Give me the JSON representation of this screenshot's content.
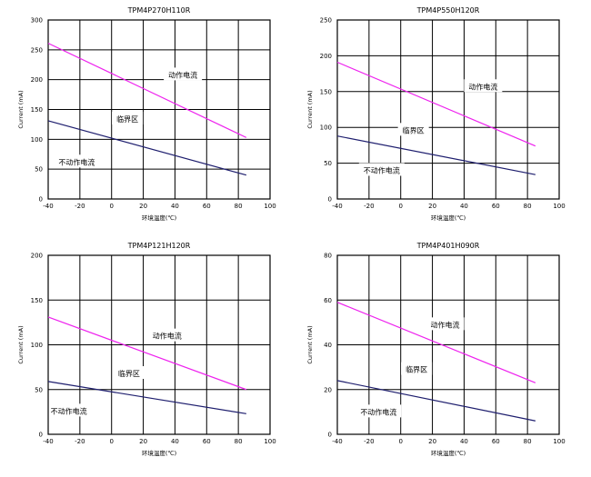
{
  "chart_data": [
    {
      "type": "line",
      "title": "TPM4P270H110R",
      "xlabel": "环境温度(℃)",
      "ylabel": "Current (mA)",
      "xlim": [
        -40,
        100
      ],
      "ylim": [
        0,
        300
      ],
      "xticks": [
        -40,
        -20,
        0,
        20,
        40,
        60,
        80,
        100
      ],
      "yticks": [
        0,
        50,
        100,
        150,
        200,
        250,
        300
      ],
      "x_tick_labels": [
        "-40",
        "-20",
        "0",
        "20",
        "40",
        "60",
        "80",
        "100"
      ],
      "y_tick_labels": [
        "0",
        "50",
        "100",
        "150",
        "200",
        "250",
        "300"
      ],
      "grid": true,
      "regions": [
        {
          "label": "动作电流",
          "x": 45,
          "y": 208
        },
        {
          "label": "临界区",
          "x": 10,
          "y": 134
        },
        {
          "label": "不动作电流",
          "x": -22,
          "y": 62
        }
      ],
      "series": [
        {
          "color": "#ee22ee",
          "x": [
            -40,
            85
          ],
          "y": [
            261,
            103
          ]
        },
        {
          "color": "#1e1e6e",
          "x": [
            -40,
            85
          ],
          "y": [
            131,
            40
          ]
        }
      ]
    },
    {
      "type": "line",
      "title": "TPM4P550H120R",
      "xlabel": "环境温度(℃)",
      "ylabel": "Current (mA)",
      "xlim": [
        -40,
        100
      ],
      "ylim": [
        0,
        250
      ],
      "xticks": [
        -40,
        -20,
        0,
        20,
        40,
        60,
        80,
        100
      ],
      "yticks": [
        0,
        50,
        100,
        150,
        200,
        250
      ],
      "x_tick_labels": [
        "-40",
        "-20",
        "0",
        "20",
        "40",
        "60",
        "80",
        "100"
      ],
      "y_tick_labels": [
        "0",
        "50",
        "100",
        "150",
        "200",
        "250"
      ],
      "grid": true,
      "regions": [
        {
          "label": "动作电流",
          "x": 52,
          "y": 157
        },
        {
          "label": "临界区",
          "x": 8,
          "y": 96
        },
        {
          "label": "不动作电流",
          "x": -12,
          "y": 40
        }
      ],
      "series": [
        {
          "color": "#ee22ee",
          "x": [
            -40,
            85
          ],
          "y": [
            191,
            74
          ]
        },
        {
          "color": "#1e1e6e",
          "x": [
            -40,
            85
          ],
          "y": [
            88,
            34
          ]
        }
      ]
    },
    {
      "type": "line",
      "title": "TPM4P121H120R",
      "xlabel": "环境温度(℃)",
      "ylabel": "Current (mA)",
      "xlim": [
        -40,
        100
      ],
      "ylim": [
        0,
        200
      ],
      "xticks": [
        -40,
        -20,
        0,
        20,
        40,
        60,
        80,
        100
      ],
      "yticks": [
        0,
        50,
        100,
        150,
        200
      ],
      "x_tick_labels": [
        "-40",
        "-20",
        "0",
        "20",
        "40",
        "60",
        "80",
        "100"
      ],
      "y_tick_labels": [
        "0",
        "50",
        "100",
        "150",
        "200"
      ],
      "grid": true,
      "regions": [
        {
          "label": "动作电流",
          "x": 35,
          "y": 110
        },
        {
          "label": "临界区",
          "x": 11,
          "y": 68
        },
        {
          "label": "不动作电流",
          "x": -27,
          "y": 26
        }
      ],
      "series": [
        {
          "color": "#ee22ee",
          "x": [
            -40,
            85
          ],
          "y": [
            131,
            50
          ]
        },
        {
          "color": "#1e1e6e",
          "x": [
            -40,
            85
          ],
          "y": [
            59,
            23
          ]
        }
      ]
    },
    {
      "type": "line",
      "title": "TPM4P401H090R",
      "xlabel": "环境温度(℃)",
      "ylabel": "Current (mA)",
      "xlim": [
        -40,
        100
      ],
      "ylim": [
        0,
        80
      ],
      "xticks": [
        -40,
        -20,
        0,
        20,
        40,
        60,
        80,
        100
      ],
      "yticks": [
        0,
        20,
        40,
        60,
        80
      ],
      "x_tick_labels": [
        "-40",
        "-20",
        "0",
        "20",
        "40",
        "60",
        "80",
        "100"
      ],
      "y_tick_labels": [
        "0",
        "20",
        "40",
        "60",
        "80"
      ],
      "grid": true,
      "regions": [
        {
          "label": "动作电流",
          "x": 28,
          "y": 49
        },
        {
          "label": "临界区",
          "x": 10,
          "y": 29
        },
        {
          "label": "不动作电流",
          "x": -14,
          "y": 10
        }
      ],
      "series": [
        {
          "color": "#ee22ee",
          "x": [
            -40,
            85
          ],
          "y": [
            59,
            23
          ]
        },
        {
          "color": "#1e1e6e",
          "x": [
            -40,
            85
          ],
          "y": [
            24,
            6
          ]
        }
      ]
    }
  ]
}
